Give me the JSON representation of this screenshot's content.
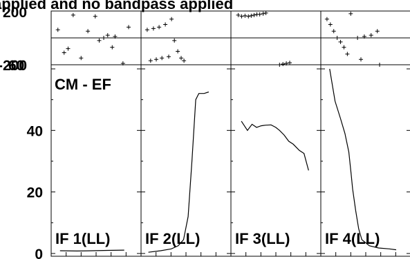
{
  "title": "applied and no bandpass applied",
  "chart_data": {
    "type": "line",
    "phase_axis": {
      "ylim": [
        -200,
        200
      ],
      "tick_labels": [
        "200",
        "-200"
      ]
    },
    "amp_axis": {
      "ylim": [
        0,
        60
      ],
      "ticks": [
        0,
        20,
        40,
        60
      ],
      "tick_labels": [
        "0",
        "20",
        "40",
        "60"
      ]
    },
    "xlim": [
      0,
      1
    ],
    "annotation": "CM - EF",
    "panels": [
      {
        "label": "IF 1(LL)",
        "phase": [
          [
            0.07,
            60
          ],
          [
            0.18,
            -110
          ],
          [
            0.25,
            -80
          ],
          [
            0.34,
            170
          ],
          [
            0.48,
            -150
          ],
          [
            0.6,
            50
          ],
          [
            0.73,
            160
          ],
          [
            0.8,
            -20
          ],
          [
            0.88,
            0
          ],
          [
            0.95,
            20
          ],
          [
            1.03,
            -70
          ],
          [
            1.08,
            10
          ],
          [
            1.16,
            -230
          ],
          [
            1.22,
            -190
          ],
          [
            1.32,
            80
          ]
        ],
        "amp": [
          [
            0.08,
            0.9
          ],
          [
            0.3,
            0.8
          ],
          [
            0.5,
            0.9
          ],
          [
            0.7,
            1.0
          ],
          [
            0.92,
            1.1
          ]
        ]
      },
      {
        "label": "IF 2(LL)",
        "phase": [
          [
            0.06,
            60
          ],
          [
            0.12,
            -170
          ],
          [
            0.17,
            70
          ],
          [
            0.22,
            -160
          ],
          [
            0.27,
            80
          ],
          [
            0.32,
            -150
          ],
          [
            0.38,
            100
          ],
          [
            0.44,
            -140
          ],
          [
            0.49,
            140
          ],
          [
            0.54,
            -20
          ],
          [
            0.6,
            -100
          ],
          [
            0.66,
            -150
          ],
          [
            0.71,
            -170
          ],
          [
            0.76,
            -210
          ],
          [
            0.81,
            -230
          ]
        ],
        "amp": [
          [
            0.06,
            0.4
          ],
          [
            0.22,
            0.9
          ],
          [
            0.36,
            1.5
          ],
          [
            0.45,
            2.5
          ],
          [
            0.52,
            4.5
          ],
          [
            0.58,
            12
          ],
          [
            0.63,
            30
          ],
          [
            0.68,
            50
          ],
          [
            0.72,
            52
          ],
          [
            0.79,
            52
          ],
          [
            0.85,
            52.5
          ]
        ]
      },
      {
        "label": "IF 3(LL)",
        "phase": [
          [
            0.08,
            170
          ],
          [
            0.14,
            160
          ],
          [
            0.2,
            165
          ],
          [
            0.26,
            160
          ],
          [
            0.31,
            165
          ],
          [
            0.36,
            170
          ],
          [
            0.41,
            175
          ],
          [
            0.46,
            175
          ],
          [
            0.52,
            180
          ],
          [
            0.57,
            185
          ],
          [
            0.56,
            -240
          ],
          [
            0.63,
            -230
          ],
          [
            0.69,
            -220
          ],
          [
            0.75,
            -210
          ],
          [
            0.81,
            -200
          ],
          [
            0.87,
            -195
          ],
          [
            0.93,
            -190
          ],
          [
            0.99,
            -185
          ]
        ],
        "amp": [
          [
            0.1,
            43
          ],
          [
            0.18,
            40
          ],
          [
            0.24,
            42
          ],
          [
            0.3,
            41
          ],
          [
            0.36,
            41.5
          ],
          [
            0.42,
            41.7
          ],
          [
            0.49,
            41.8
          ],
          [
            0.55,
            41
          ],
          [
            0.6,
            40
          ],
          [
            0.66,
            38.5
          ],
          [
            0.72,
            36.5
          ],
          [
            0.78,
            35.5
          ],
          [
            0.86,
            33.5
          ],
          [
            0.92,
            32.5
          ],
          [
            0.98,
            27
          ]
        ]
      },
      {
        "label": "IF 4(LL)",
        "phase": [
          [
            0.06,
            140
          ],
          [
            0.12,
            100
          ],
          [
            0.18,
            50
          ],
          [
            0.24,
            0
          ],
          [
            0.3,
            -30
          ],
          [
            0.36,
            -70
          ],
          [
            0.42,
            -120
          ],
          [
            0.48,
            180
          ],
          [
            0.54,
            -230
          ],
          [
            0.6,
            0
          ],
          [
            0.66,
            -160
          ],
          [
            0.72,
            10
          ],
          [
            0.78,
            -240
          ],
          [
            0.84,
            20
          ],
          [
            0.88,
            -210
          ],
          [
            0.95,
            50
          ],
          [
            0.99,
            -200
          ]
        ],
        "amp": [
          [
            0.08,
            60
          ],
          [
            0.15,
            49.5
          ],
          [
            0.22,
            44
          ],
          [
            0.28,
            39
          ],
          [
            0.33,
            33
          ],
          [
            0.36,
            26
          ],
          [
            0.38,
            21
          ],
          [
            0.42,
            14
          ],
          [
            0.46,
            8
          ],
          [
            0.5,
            4.5
          ],
          [
            0.6,
            2.5
          ],
          [
            0.72,
            1.8
          ],
          [
            0.86,
            1.5
          ],
          [
            0.95,
            1.2
          ]
        ]
      }
    ]
  }
}
